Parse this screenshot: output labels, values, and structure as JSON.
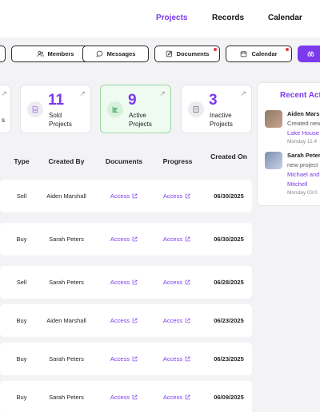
{
  "nav": {
    "projects": "Projects",
    "records": "Records",
    "calendar": "Calendar"
  },
  "toolbar": {
    "members": "Members",
    "messages": "Messages",
    "documents": "Documents",
    "calendar": "Calendar"
  },
  "stats": {
    "sold": {
      "value": "11",
      "label": "Sold Projects"
    },
    "active": {
      "value": "9",
      "label": "Active Projects"
    },
    "inactive": {
      "value": "3",
      "label": "Inactive Projects"
    },
    "partial_label": "s"
  },
  "table": {
    "headers": {
      "type": "Type",
      "created_by": "Created By",
      "documents": "Documents",
      "progress": "Progress",
      "created_on": "Created On"
    },
    "rows": [
      {
        "type": "Sell",
        "created_by": "Aiden Marshall",
        "documents": "Access",
        "progress": "Access",
        "created_on": "06/30/2025"
      },
      {
        "type": "Buy",
        "created_by": "Sarah Peters",
        "documents": "Access",
        "progress": "Access",
        "created_on": "06/30/2025"
      },
      {
        "type": "Sell",
        "created_by": "Sarah Peters",
        "documents": "Access",
        "progress": "Access",
        "created_on": "06/28/2025"
      },
      {
        "type": "Buy",
        "created_by": "Aiden Marshall",
        "documents": "Access",
        "progress": "Access",
        "created_on": "06/23/2025"
      },
      {
        "type": "Buy",
        "created_by": "Sarah Peters",
        "documents": "Access",
        "progress": "Access",
        "created_on": "06/23/2025"
      },
      {
        "type": "Buy",
        "created_by": "Sarah Peters",
        "documents": "Access",
        "progress": "Access",
        "created_on": "06/09/2025"
      }
    ]
  },
  "activity": {
    "title": "Recent Acti",
    "items": [
      {
        "name": "Aiden Mars",
        "line1": "Created new",
        "line2": "Lake House",
        "time": "Monday 11:4"
      },
      {
        "name": "Sarah Peter",
        "line1": "new project",
        "line2": "Michael and",
        "line3": "Mitchell",
        "time": "Monday 03:0"
      }
    ]
  }
}
